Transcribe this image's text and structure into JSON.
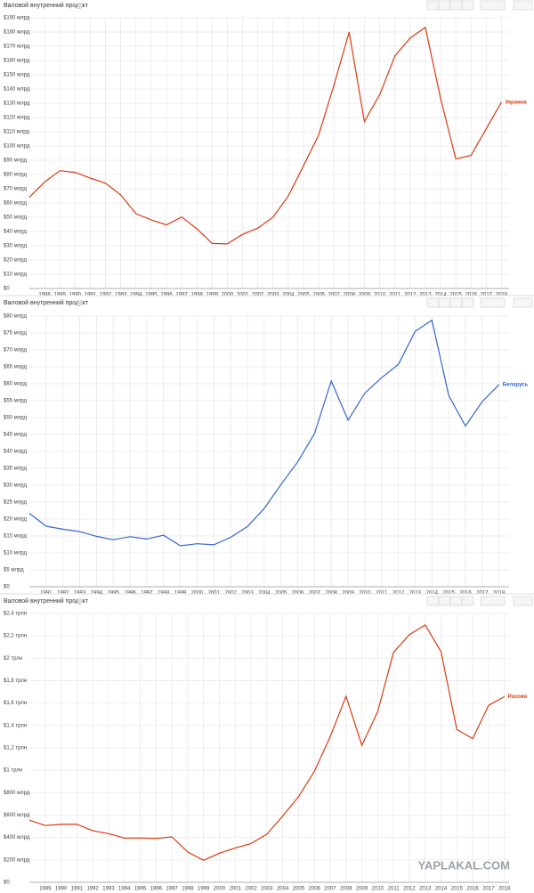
{
  "chart_data": [
    {
      "type": "line",
      "title": "Валовой внутренний продукт",
      "x": [
        1987,
        1988,
        1989,
        1990,
        1991,
        1992,
        1993,
        1994,
        1995,
        1996,
        1997,
        1998,
        1999,
        2000,
        2001,
        2002,
        2003,
        2004,
        2005,
        2006,
        2007,
        2008,
        2009,
        2010,
        2011,
        2012,
        2013,
        2014,
        2015,
        2016,
        2017,
        2018
      ],
      "series": [
        {
          "name": "Украина",
          "color": "#dc3912",
          "values": [
            64,
            74.7,
            82.7,
            81.5,
            77.5,
            73.9,
            65.6,
            52.5,
            48.2,
            44.6,
            50.2,
            41.9,
            31.6,
            31.3,
            38,
            42.4,
            50.1,
            64.9,
            86.1,
            107.8,
            142.7,
            180,
            117.2,
            136,
            163.2,
            175.8,
            183.3,
            133.5,
            91,
            93.4,
            112.1,
            130.8
          ]
        }
      ],
      "xlim": [
        1987,
        2018.5
      ],
      "xticks": [
        1988,
        1989,
        1990,
        1991,
        1992,
        1993,
        1994,
        1995,
        1996,
        1997,
        1998,
        1999,
        2000,
        2001,
        2002,
        2003,
        2004,
        2005,
        2006,
        2007,
        2008,
        2009,
        2010,
        2011,
        2012,
        2013,
        2014,
        2015,
        2016,
        2017,
        2018
      ],
      "ylim": [
        0,
        190
      ],
      "yticks": [
        {
          "value": 0,
          "label": "$0"
        },
        {
          "value": 10,
          "label": "$10 млрд"
        },
        {
          "value": 20,
          "label": "$20 млрд"
        },
        {
          "value": 30,
          "label": "$30 млрд"
        },
        {
          "value": 40,
          "label": "$40 млрд"
        },
        {
          "value": 50,
          "label": "$50 млрд"
        },
        {
          "value": 60,
          "label": "$60 млрд"
        },
        {
          "value": 70,
          "label": "$70 млрд"
        },
        {
          "value": 80,
          "label": "$80 млрд"
        },
        {
          "value": 90,
          "label": "$90 млрд"
        },
        {
          "value": 100,
          "label": "$100 млрд"
        },
        {
          "value": 110,
          "label": "$110 млрд"
        },
        {
          "value": 120,
          "label": "$120 млрд"
        },
        {
          "value": 130,
          "label": "$130 млрд"
        },
        {
          "value": 140,
          "label": "$140 млрд"
        },
        {
          "value": 150,
          "label": "$150 млрд"
        },
        {
          "value": 160,
          "label": "$160 млрд"
        },
        {
          "value": 170,
          "label": "$170 млрд"
        },
        {
          "value": 180,
          "label": "$180 млрд"
        },
        {
          "value": 190,
          "label": "$190 млрд"
        }
      ],
      "grid": true
    },
    {
      "type": "line",
      "title": "Валовой внутренний продукт",
      "x": [
        1990,
        1991,
        1992,
        1993,
        1994,
        1995,
        1996,
        1997,
        1998,
        1999,
        2000,
        2001,
        2002,
        2003,
        2004,
        2005,
        2006,
        2007,
        2008,
        2009,
        2010,
        2011,
        2012,
        2013,
        2014,
        2015,
        2016,
        2017,
        2018
      ],
      "series": [
        {
          "name": "Беларусь",
          "color": "#3366cc",
          "values": [
            21.7,
            17.9,
            17,
            16.3,
            14.9,
            13.9,
            14.8,
            14.1,
            15.2,
            12.1,
            12.7,
            12.4,
            14.6,
            17.8,
            23.1,
            30.2,
            36.9,
            45.3,
            60.8,
            49.2,
            57.2,
            61.8,
            65.7,
            75.5,
            78.8,
            56.5,
            47.5,
            54.7,
            59.7
          ]
        }
      ],
      "xlim": [
        1990,
        2018.6
      ],
      "xticks": [
        1991,
        1992,
        1993,
        1994,
        1995,
        1996,
        1997,
        1998,
        1999,
        2000,
        2001,
        2002,
        2003,
        2004,
        2005,
        2006,
        2007,
        2008,
        2009,
        2010,
        2011,
        2012,
        2013,
        2014,
        2015,
        2016,
        2017,
        2018
      ],
      "ylim": [
        0,
        80
      ],
      "yticks": [
        {
          "value": 0,
          "label": "$0"
        },
        {
          "value": 5,
          "label": "$5 млрд"
        },
        {
          "value": 10,
          "label": "$10 млрд"
        },
        {
          "value": 15,
          "label": "$15 млрд"
        },
        {
          "value": 20,
          "label": "$20 млрд"
        },
        {
          "value": 25,
          "label": "$25 млрд"
        },
        {
          "value": 30,
          "label": "$30 млрд"
        },
        {
          "value": 35,
          "label": "$35 млрд"
        },
        {
          "value": 40,
          "label": "$40 млрд"
        },
        {
          "value": 45,
          "label": "$45 млрд"
        },
        {
          "value": 50,
          "label": "$50 млрд"
        },
        {
          "value": 55,
          "label": "$55 млрд"
        },
        {
          "value": 60,
          "label": "$60 млрд"
        },
        {
          "value": 65,
          "label": "$65 млрд"
        },
        {
          "value": 70,
          "label": "$70 млрд"
        },
        {
          "value": 75,
          "label": "$75 млрд"
        },
        {
          "value": 80,
          "label": "$80 млрд"
        }
      ],
      "grid": true
    },
    {
      "type": "line",
      "title": "Валовой внутренний продукт",
      "x": [
        1988,
        1989,
        1990,
        1991,
        1992,
        1993,
        1994,
        1995,
        1996,
        1997,
        1998,
        1999,
        2000,
        2001,
        2002,
        2003,
        2004,
        2005,
        2006,
        2007,
        2008,
        2009,
        2010,
        2011,
        2012,
        2013,
        2014,
        2015,
        2016,
        2017,
        2018
      ],
      "series": [
        {
          "name": "Россия",
          "color": "#dc3912",
          "values": [
            555,
            507,
            517,
            518,
            460,
            435,
            395,
            396,
            392,
            405,
            271,
            196,
            260,
            307,
            346,
            430,
            591,
            764,
            990,
            1300,
            1661,
            1223,
            1525,
            2052,
            2210,
            2297,
            2059,
            1364,
            1283,
            1579,
            1658
          ]
        }
      ],
      "xlim": [
        1988,
        2018.3
      ],
      "xticks": [
        1989,
        1990,
        1991,
        1992,
        1993,
        1994,
        1995,
        1996,
        1997,
        1998,
        1999,
        2000,
        2001,
        2002,
        2003,
        2004,
        2005,
        2006,
        2007,
        2008,
        2009,
        2010,
        2011,
        2012,
        2013,
        2014,
        2015,
        2016,
        2017,
        2018
      ],
      "ylim": [
        0,
        2400
      ],
      "yticks": [
        {
          "value": 0,
          "label": "$0"
        },
        {
          "value": 200,
          "label": "$200 млрд"
        },
        {
          "value": 400,
          "label": "$400 млрд"
        },
        {
          "value": 600,
          "label": "$600 млрд"
        },
        {
          "value": 800,
          "label": "$800 млрд"
        },
        {
          "value": 1000,
          "label": "$1 трлн"
        },
        {
          "value": 1200,
          "label": "$1,2 трлн"
        },
        {
          "value": 1400,
          "label": "$1,4 трлн"
        },
        {
          "value": 1600,
          "label": "$1,6 трлн"
        },
        {
          "value": 1800,
          "label": "$1,8 трлн"
        },
        {
          "value": 2000,
          "label": "$2 трлн"
        },
        {
          "value": 2200,
          "label": "$2,2 трлн"
        },
        {
          "value": 2400,
          "label": "$2,4 трлн"
        }
      ],
      "grid": true
    }
  ],
  "watermark": "YAPLAKAL.COM"
}
